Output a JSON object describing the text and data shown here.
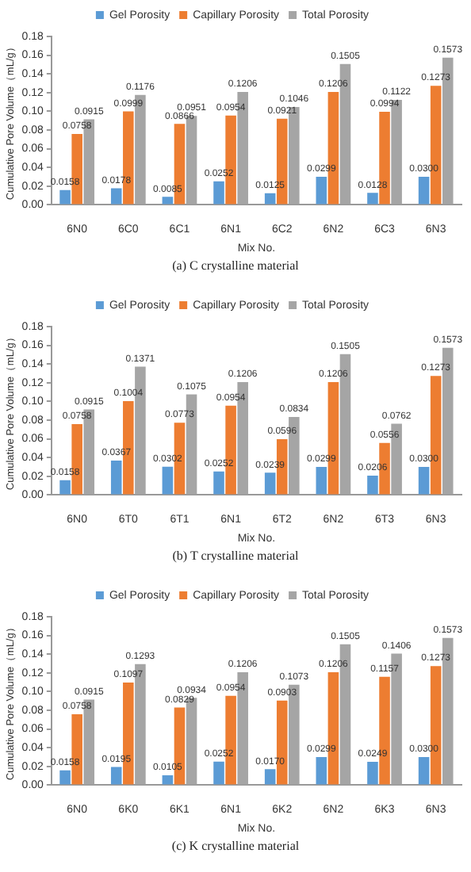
{
  "chart_data": [
    {
      "type": "bar",
      "categories": [
        "6N0",
        "6C0",
        "6C1",
        "6N1",
        "6C2",
        "6N2",
        "6C3",
        "6N3"
      ],
      "xlabel": "Mix No.",
      "ylabel": "Cumulative Pore Volume（mL/g）",
      "ylim": [
        0,
        0.18
      ],
      "yticks": [
        {
          "value": 0,
          "label": "0.00"
        },
        {
          "value": 0.02,
          "label": "0.02"
        },
        {
          "value": 0.04,
          "label": "0.04"
        },
        {
          "value": 0.06,
          "label": "0.06"
        },
        {
          "value": 0.08,
          "label": "0.08"
        },
        {
          "value": 0.1,
          "label": "0.10"
        },
        {
          "value": 0.12,
          "label": "0.12"
        },
        {
          "value": 0.14,
          "label": "0.14"
        },
        {
          "value": 0.16,
          "label": "0.16"
        },
        {
          "value": 0.18,
          "label": "0.18"
        }
      ],
      "legend": "top",
      "grid": false,
      "annotations": [
        "(a) C crystalline material"
      ],
      "series": [
        {
          "name": "Gel Porosity",
          "color": "#5b9bd5",
          "values": [
            0.0158,
            0.0178,
            0.0085,
            0.0252,
            0.0125,
            0.0299,
            0.0128,
            0.03
          ],
          "value_labels": [
            "0.0158",
            "0.0178",
            "0.0085",
            "0.0252",
            "0.0125",
            "0.0299",
            "0.0128",
            "0.0300"
          ]
        },
        {
          "name": "Capillary Porosity",
          "color": "#ed7d31",
          "values": [
            0.0758,
            0.0999,
            0.0866,
            0.0954,
            0.0921,
            0.1206,
            0.0994,
            0.1273
          ],
          "value_labels": [
            "0.0758",
            "0.0999",
            "0.0866",
            "0.0954",
            "0.0921",
            "0.1206",
            "0.0994",
            "0.1273"
          ]
        },
        {
          "name": "Total Porosity",
          "color": "#a5a5a5",
          "values": [
            0.0915,
            0.1176,
            0.0951,
            0.1206,
            0.1046,
            0.1505,
            0.1122,
            0.1573
          ],
          "value_labels": [
            "0.0915",
            "0.1176",
            "0.0951",
            "0.1206",
            "0.1046",
            "0.1505",
            "0.1122",
            "0.1573"
          ]
        }
      ]
    },
    {
      "type": "bar",
      "categories": [
        "6N0",
        "6T0",
        "6T1",
        "6N1",
        "6T2",
        "6N2",
        "6T3",
        "6N3"
      ],
      "xlabel": "Mix No.",
      "ylabel": "Cumulative Pore Volume（mL/g）",
      "ylim": [
        0,
        0.18
      ],
      "yticks": [
        {
          "value": 0,
          "label": "0.00"
        },
        {
          "value": 0.02,
          "label": "0.02"
        },
        {
          "value": 0.04,
          "label": "0.04"
        },
        {
          "value": 0.06,
          "label": "0.06"
        },
        {
          "value": 0.08,
          "label": "0.08"
        },
        {
          "value": 0.1,
          "label": "0.10"
        },
        {
          "value": 0.12,
          "label": "0.12"
        },
        {
          "value": 0.14,
          "label": "0.14"
        },
        {
          "value": 0.16,
          "label": "0.16"
        },
        {
          "value": 0.18,
          "label": "0.18"
        }
      ],
      "legend": "top",
      "grid": false,
      "annotations": [
        "(b) T crystalline material"
      ],
      "series": [
        {
          "name": "Gel Porosity",
          "color": "#5b9bd5",
          "values": [
            0.0158,
            0.0367,
            0.0302,
            0.0252,
            0.0239,
            0.0299,
            0.0206,
            0.03
          ],
          "value_labels": [
            "0.0158",
            "0.0367",
            "0.0302",
            "0.0252",
            "0.0239",
            "0.0299",
            "0.0206",
            "0.0300"
          ]
        },
        {
          "name": "Capillary Porosity",
          "color": "#ed7d31",
          "values": [
            0.0758,
            0.1004,
            0.0773,
            0.0954,
            0.0596,
            0.1206,
            0.0556,
            0.1273
          ],
          "value_labels": [
            "0.0758",
            "0.1004",
            "0.0773",
            "0.0954",
            "0.0596",
            "0.1206",
            "0.0556",
            "0.1273"
          ]
        },
        {
          "name": "Total Porosity",
          "color": "#a5a5a5",
          "values": [
            0.0915,
            0.1371,
            0.1075,
            0.1206,
            0.0834,
            0.1505,
            0.0762,
            0.1573
          ],
          "value_labels": [
            "0.0915",
            "0.1371",
            "0.1075",
            "0.1206",
            "0.0834",
            "0.1505",
            "0.0762",
            "0.1573"
          ]
        }
      ]
    },
    {
      "type": "bar",
      "categories": [
        "6N0",
        "6K0",
        "6K1",
        "6N1",
        "6K2",
        "6N2",
        "6K3",
        "6N3"
      ],
      "xlabel": "Mix No.",
      "ylabel": "Cumulative Pore Volume（mL/g）",
      "ylim": [
        0,
        0.18
      ],
      "yticks": [
        {
          "value": 0,
          "label": "0.00"
        },
        {
          "value": 0.02,
          "label": "0.02"
        },
        {
          "value": 0.04,
          "label": "0.04"
        },
        {
          "value": 0.06,
          "label": "0.06"
        },
        {
          "value": 0.08,
          "label": "0.08"
        },
        {
          "value": 0.1,
          "label": "0.10"
        },
        {
          "value": 0.12,
          "label": "0.12"
        },
        {
          "value": 0.14,
          "label": "0.14"
        },
        {
          "value": 0.16,
          "label": "0.16"
        },
        {
          "value": 0.18,
          "label": "0.18"
        }
      ],
      "legend": "top",
      "grid": false,
      "annotations": [
        "(c) K crystalline material"
      ],
      "series": [
        {
          "name": "Gel Porosity",
          "color": "#5b9bd5",
          "values": [
            0.0158,
            0.0195,
            0.0105,
            0.0252,
            0.017,
            0.0299,
            0.0249,
            0.03
          ],
          "value_labels": [
            "0.0158",
            "0.0195",
            "0.0105",
            "0.0252",
            "0.0170",
            "0.0299",
            "0.0249",
            "0.0300"
          ]
        },
        {
          "name": "Capillary Porosity",
          "color": "#ed7d31",
          "values": [
            0.0758,
            0.1097,
            0.0829,
            0.0954,
            0.0903,
            0.1206,
            0.1157,
            0.1273
          ],
          "value_labels": [
            "0.0758",
            "0.1097",
            "0.0829",
            "0.0954",
            "0.0903",
            "0.1206",
            "0.1157",
            "0.1273"
          ]
        },
        {
          "name": "Total Porosity",
          "color": "#a5a5a5",
          "values": [
            0.0915,
            0.1293,
            0.0934,
            0.1206,
            0.1073,
            0.1505,
            0.1406,
            0.1573
          ],
          "value_labels": [
            "0.0915",
            "0.1293",
            "0.0934",
            "0.1206",
            "0.1073",
            "0.1505",
            "0.1406",
            "0.1573"
          ]
        }
      ]
    }
  ]
}
